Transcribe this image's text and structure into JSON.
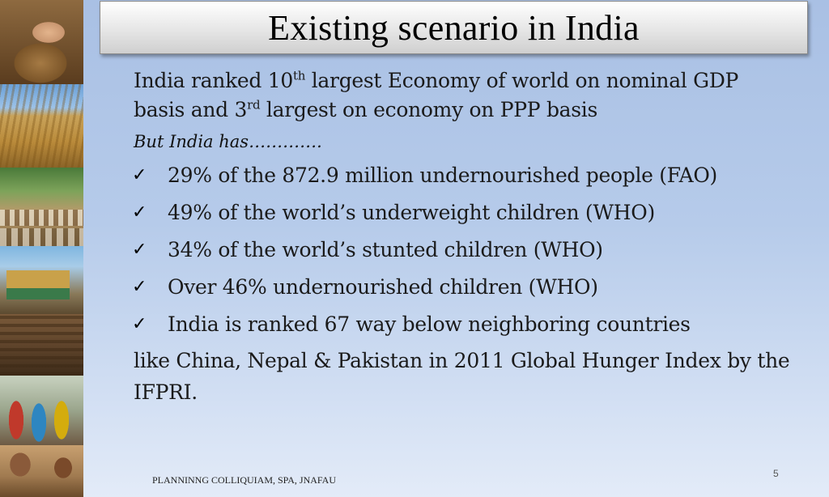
{
  "slide": {
    "title": "Existing scenario in India",
    "intro": {
      "line1_pre": "India ranked 10",
      "line1_sup": "th",
      "line1_post": " largest Economy of world  on nominal GDP",
      "line2_pre": "basis and 3",
      "line2_sup": "rd",
      "line2_post": " largest on economy on PPP basis"
    },
    "but_line": "But India has………….",
    "bullets": [
      "29% of  the 872.9 million undernourished people (FAO)",
      "49% of the world’s underweight children (WHO)",
      "34% of the world’s stunted children (WHO)",
      "Over 46% undernourished children (WHO)",
      "India is ranked 67 way below neighboring countries"
    ],
    "bullet_marker": "✓",
    "tail": "like China, Nepal & Pakistan in 2011 Global Hunger Index by the IFPRI.",
    "footer": "PLANNINNG COLLIQUIAM, SPA, JNAFAU",
    "page_number": "5"
  },
  "photos": [
    {
      "icon": "grain-in-hands-photo"
    },
    {
      "icon": "wheat-field-photo"
    },
    {
      "icon": "grain-sacks-market-photo"
    },
    {
      "icon": "loaded-truck-photo"
    },
    {
      "icon": "grain-storage-photo"
    },
    {
      "icon": "women-queue-photo"
    },
    {
      "icon": "children-eating-photo"
    }
  ]
}
